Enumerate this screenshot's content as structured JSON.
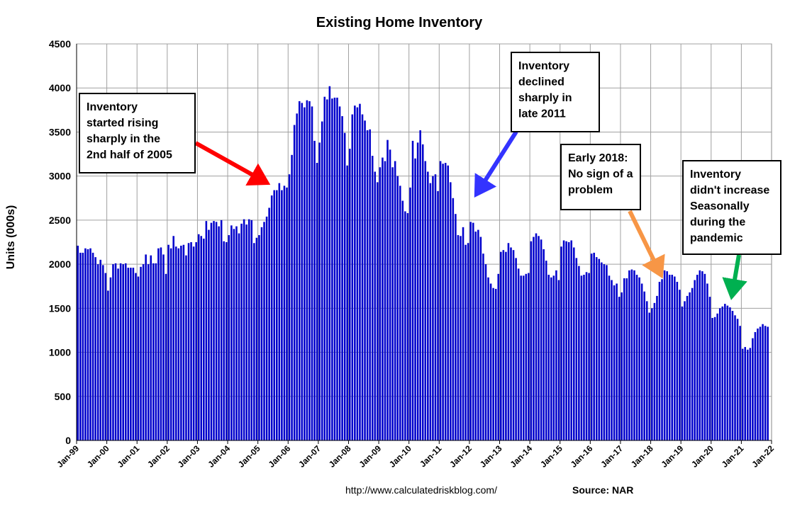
{
  "chart_data": {
    "type": "bar",
    "title": "Existing Home Inventory",
    "ylabel": "Units (000s)",
    "xlabel": "",
    "ylim": [
      0,
      4500
    ],
    "yticks": [
      0,
      500,
      1000,
      1500,
      2000,
      2500,
      3000,
      3500,
      4000,
      4500
    ],
    "x_start": "Jan-99",
    "x_end": "Jan-22",
    "xtick_labels": [
      "Jan-99",
      "Jan-00",
      "Jan-01",
      "Jan-02",
      "Jan-03",
      "Jan-04",
      "Jan-05",
      "Jan-06",
      "Jan-07",
      "Jan-08",
      "Jan-09",
      "Jan-10",
      "Jan-11",
      "Jan-12",
      "Jan-13",
      "Jan-14",
      "Jan-15",
      "Jan-16",
      "Jan-17",
      "Jan-18",
      "Jan-19",
      "Jan-20",
      "Jan-21",
      "Jan-22"
    ],
    "grid": true,
    "bar_color": "#0000cc",
    "series": [
      {
        "values": [
          2210,
          2130,
          2130,
          2180,
          2170,
          2180,
          2130,
          2080,
          2000,
          2050,
          1990,
          1900,
          1700,
          1850,
          2000,
          2010,
          1950,
          2010,
          2000,
          2010,
          1960,
          1960,
          1960,
          1900,
          1860,
          1970,
          2000,
          2110,
          2000,
          2100,
          2010,
          2010,
          2180,
          2190,
          2110,
          1890,
          2220,
          2180,
          2320,
          2200,
          2180,
          2210,
          2220,
          2100,
          2240,
          2250,
          2200,
          2250,
          2340,
          2320,
          2290,
          2490,
          2390,
          2470,
          2490,
          2480,
          2430,
          2500,
          2260,
          2250,
          2330,
          2440,
          2400,
          2430,
          2350,
          2460,
          2510,
          2450,
          2510,
          2500,
          2240,
          2300,
          2330,
          2420,
          2480,
          2540,
          2640,
          2780,
          2840,
          2840,
          2920,
          2840,
          2890,
          2870,
          3020,
          3240,
          3580,
          3710,
          3850,
          3830,
          3780,
          3860,
          3850,
          3790,
          3400,
          3150,
          3380,
          3620,
          3900,
          3870,
          4020,
          3880,
          3890,
          3890,
          3790,
          3680,
          3490,
          3120,
          3310,
          3700,
          3800,
          3780,
          3820,
          3700,
          3630,
          3520,
          3530,
          3230,
          3050,
          2930,
          3100,
          3210,
          3170,
          3410,
          3300,
          3100,
          3170,
          3000,
          2890,
          2720,
          2600,
          2580,
          2870,
          3400,
          3200,
          3380,
          3520,
          3360,
          3170,
          3050,
          2920,
          3000,
          3020,
          2830,
          3170,
          3140,
          3150,
          3120,
          2930,
          2750,
          2570,
          2330,
          2320,
          2420,
          2220,
          2240,
          2480,
          2470,
          2370,
          2390,
          2310,
          2120,
          2000,
          1850,
          1780,
          1730,
          1720,
          1890,
          2140,
          2160,
          2140,
          2240,
          2190,
          2160,
          2070,
          1950,
          1870,
          1870,
          1890,
          1900,
          2260,
          2310,
          2350,
          2320,
          2280,
          2170,
          2040,
          1880,
          1850,
          1870,
          1930,
          1820,
          2200,
          2270,
          2260,
          2250,
          2270,
          2190,
          2070,
          1980,
          1870,
          1880,
          1910,
          1900,
          2120,
          2130,
          2080,
          2060,
          2020,
          2000,
          1990,
          1870,
          1820,
          1760,
          1780,
          1630,
          1680,
          1840,
          1840,
          1930,
          1940,
          1930,
          1880,
          1850,
          1780,
          1690,
          1580,
          1450,
          1500,
          1560,
          1640,
          1800,
          1830,
          1930,
          1920,
          1880,
          1880,
          1860,
          1800,
          1710,
          1520,
          1580,
          1640,
          1680,
          1730,
          1820,
          1880,
          1930,
          1920,
          1890,
          1780,
          1630,
          1390,
          1400,
          1440,
          1500,
          1520,
          1550,
          1530,
          1510,
          1470,
          1420,
          1380,
          1300,
          1040,
          1060,
          1030,
          1050,
          1160,
          1230,
          1270,
          1290,
          1320,
          1300,
          1290
        ]
      }
    ],
    "annotations": [
      {
        "id": "rise-2005",
        "lines": [
          "Inventory",
          "started rising",
          "sharply in the",
          "2nd half of 2005"
        ],
        "arrow_color": "#ff0000"
      },
      {
        "id": "decline-2011",
        "lines": [
          "Inventory",
          "declined",
          "sharply in",
          "late 2011"
        ],
        "arrow_color": "#3333ff"
      },
      {
        "id": "early-2018",
        "lines": [
          "Early 2018:",
          "No sign of a",
          "problem"
        ],
        "arrow_color": "#f79646"
      },
      {
        "id": "pandemic",
        "lines": [
          "Inventory",
          "didn't increase",
          "Seasonally",
          "during the",
          "pandemic"
        ],
        "arrow_color": "#00b050"
      }
    ],
    "footer": {
      "url": "http://www.calculatedriskblog.com/",
      "source": "Source: NAR"
    }
  }
}
